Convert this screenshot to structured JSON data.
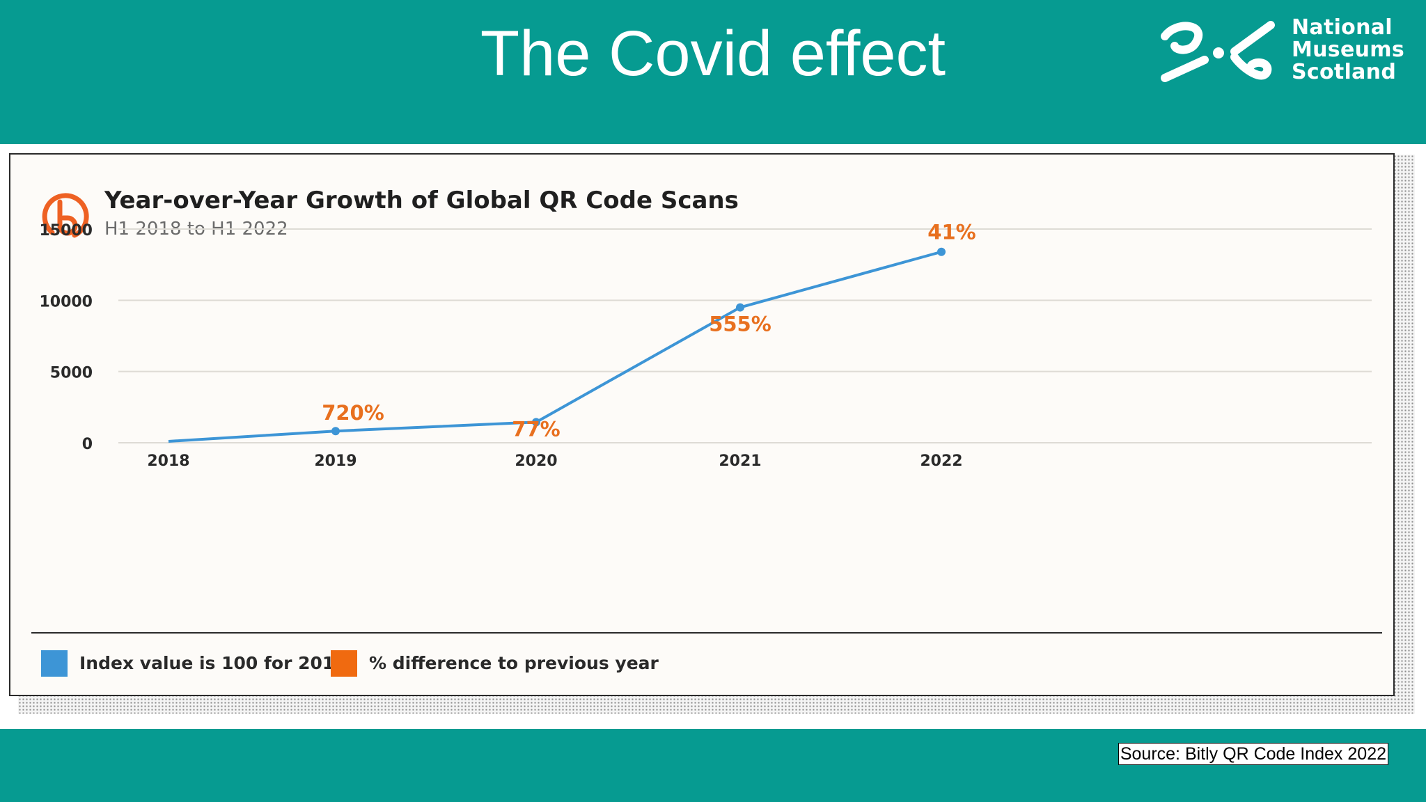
{
  "slide": {
    "title": "The Covid effect",
    "logo_lines": [
      "National",
      "Museums",
      "Scotland"
    ],
    "source": "Source: Bitly QR Code Index 2022"
  },
  "colors": {
    "teal": "#069b91",
    "line_blue": "#3d95d6",
    "label_orange": "#e8701f"
  },
  "chart_data": {
    "type": "line",
    "title": "Year-over-Year Growth of Global QR Code Scans",
    "subtitle": "H1 2018 to H1 2022",
    "categories": [
      "2018",
      "2019",
      "2020",
      "2021",
      "2022"
    ],
    "y_ticks": [
      "15000",
      "10000",
      "5000",
      "0"
    ],
    "ylim": [
      0,
      15000
    ],
    "grid": true,
    "series": [
      {
        "name": "Index value is 100 for 2018",
        "values": [
          100,
          820,
          1450,
          9500,
          13400
        ]
      }
    ],
    "annotations": [
      "720%",
      "77%",
      "555%",
      "41%"
    ],
    "legend": [
      {
        "label": "Index value is 100 for 2018",
        "color": "#3d95d6"
      },
      {
        "label": "% difference to previous year",
        "color": "#f06a10"
      }
    ],
    "legend_position": "bottom-left"
  }
}
